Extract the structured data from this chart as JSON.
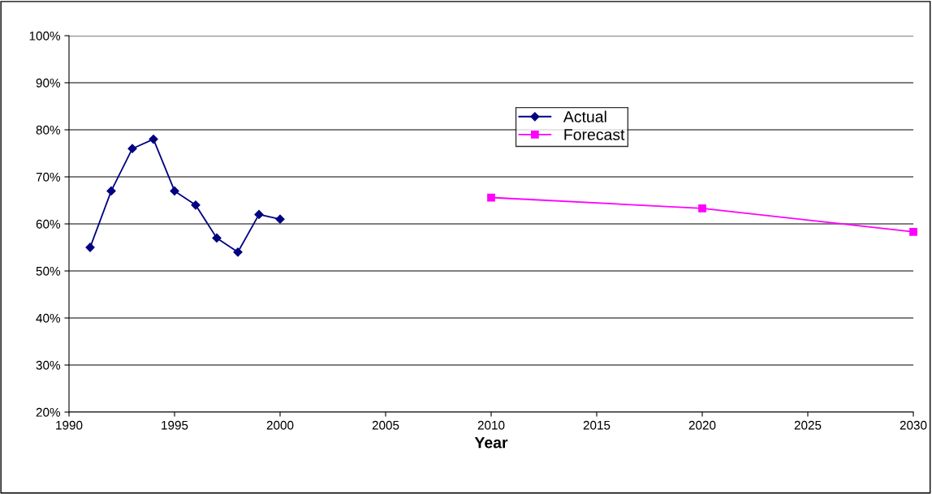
{
  "chart_data": {
    "type": "line",
    "xlabel": "Year",
    "xlim": [
      1990,
      2030
    ],
    "xticks": [
      1990,
      1995,
      2000,
      2005,
      2010,
      2015,
      2020,
      2025,
      2030
    ],
    "ylim": [
      20,
      100
    ],
    "yticks": [
      {
        "value": 20,
        "label": "20%"
      },
      {
        "value": 30,
        "label": "30%"
      },
      {
        "value": 40,
        "label": "40%"
      },
      {
        "value": 50,
        "label": "50%"
      },
      {
        "value": 60,
        "label": "60%"
      },
      {
        "value": 70,
        "label": "70%"
      },
      {
        "value": 80,
        "label": "80%"
      },
      {
        "value": 90,
        "label": "90%"
      },
      {
        "value": 100,
        "label": "100%"
      }
    ],
    "grid": "y",
    "legend": "top",
    "series": [
      {
        "name": "Actual",
        "color": "#000080",
        "marker": "diamond",
        "x": [
          1991,
          1992,
          1993,
          1994,
          1995,
          1996,
          1997,
          1998,
          1999,
          2000
        ],
        "values": [
          55,
          67,
          76,
          78,
          67,
          64,
          57,
          54,
          62,
          61
        ]
      },
      {
        "name": "Forecast",
        "color": "#ff00ff",
        "marker": "square",
        "x": [
          2010,
          2020,
          2030
        ],
        "values": [
          65.6,
          63.3,
          58.3
        ]
      }
    ]
  }
}
